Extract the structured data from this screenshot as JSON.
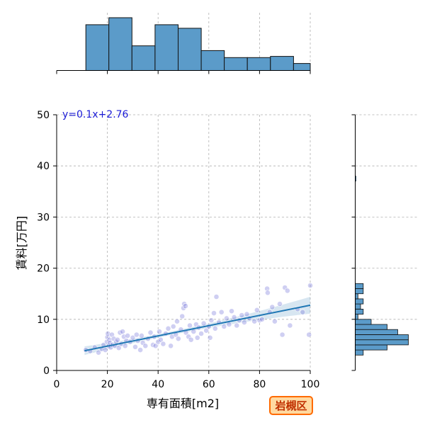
{
  "chart_data": {
    "type": "scatter",
    "xlabel": "専有面積[m2]",
    "ylabel": "賃料[万円]",
    "xlim": [
      0,
      100
    ],
    "ylim": [
      0,
      50
    ],
    "x_ticks": [
      0,
      20,
      40,
      60,
      80,
      100
    ],
    "y_ticks": [
      0,
      10,
      20,
      30,
      40,
      50
    ],
    "grid": true,
    "annotation": "y=0.1x+2.76",
    "badge": "岩槻区",
    "regression": {
      "slope": 0.1,
      "intercept": 2.76,
      "x_range": [
        11,
        100
      ]
    },
    "top_histogram": {
      "bin_edges": [
        11.5,
        20.6,
        29.7,
        38.8,
        47.9,
        57.0,
        66.1,
        75.2,
        84.3,
        93.4,
        100
      ],
      "counts": [
        39,
        45,
        21,
        39,
        36,
        17,
        11,
        11,
        12,
        6
      ]
    },
    "right_histogram": {
      "bin_edges": [
        3.0,
        4.0,
        5.0,
        6.0,
        7.0,
        8.0,
        9.0,
        10.0,
        11.0,
        12.0,
        13.0,
        14.0,
        15.0,
        16.0,
        17.0,
        38.0
      ],
      "counts": [
        3,
        12,
        20,
        20,
        16,
        12,
        6,
        1,
        3,
        2,
        3,
        1,
        3,
        3,
        0
      ]
    },
    "points": [
      [
        11.5,
        4.0
      ],
      [
        13.2,
        3.8
      ],
      [
        15.0,
        4.5
      ],
      [
        16.5,
        3.5
      ],
      [
        17.8,
        4.2
      ],
      [
        18.5,
        5.0
      ],
      [
        19.2,
        4.0
      ],
      [
        19.8,
        5.6
      ],
      [
        20.0,
        6.5
      ],
      [
        20.2,
        7.2
      ],
      [
        20.5,
        4.8
      ],
      [
        20.8,
        6.0
      ],
      [
        21.0,
        5.4
      ],
      [
        21.3,
        4.5
      ],
      [
        21.8,
        7.0
      ],
      [
        22.0,
        5.0
      ],
      [
        22.5,
        6.2
      ],
      [
        23.0,
        4.8
      ],
      [
        23.5,
        5.6
      ],
      [
        24.0,
        6.0
      ],
      [
        24.5,
        4.4
      ],
      [
        25.0,
        7.4
      ],
      [
        25.5,
        5.2
      ],
      [
        26.0,
        7.6
      ],
      [
        26.5,
        6.6
      ],
      [
        27.0,
        4.8
      ],
      [
        27.5,
        5.8
      ],
      [
        28.0,
        6.8
      ],
      [
        29.0,
        5.6
      ],
      [
        30.0,
        6.4
      ],
      [
        31.0,
        4.6
      ],
      [
        31.5,
        7.0
      ],
      [
        32.0,
        5.8
      ],
      [
        33.0,
        4.0
      ],
      [
        33.5,
        6.8
      ],
      [
        34.0,
        5.4
      ],
      [
        35.0,
        4.8
      ],
      [
        36.0,
        6.2
      ],
      [
        37.0,
        7.4
      ],
      [
        38.0,
        5.0
      ],
      [
        38.5,
        6.6
      ],
      [
        39.0,
        4.8
      ],
      [
        40.0,
        5.6
      ],
      [
        40.5,
        7.6
      ],
      [
        41.0,
        6.0
      ],
      [
        42.0,
        5.2
      ],
      [
        43.0,
        7.2
      ],
      [
        44.0,
        8.2
      ],
      [
        45.0,
        4.8
      ],
      [
        45.5,
        6.6
      ],
      [
        46.0,
        8.6
      ],
      [
        47.0,
        7.0
      ],
      [
        47.5,
        9.6
      ],
      [
        48.0,
        6.2
      ],
      [
        49.0,
        8.0
      ],
      [
        49.5,
        10.6
      ],
      [
        50.0,
        12.2
      ],
      [
        50.3,
        13.0
      ],
      [
        50.8,
        12.6
      ],
      [
        51.0,
        7.4
      ],
      [
        52.0,
        6.6
      ],
      [
        52.5,
        8.8
      ],
      [
        53.0,
        6.0
      ],
      [
        54.0,
        7.6
      ],
      [
        55.0,
        9.0
      ],
      [
        55.5,
        6.4
      ],
      [
        56.0,
        8.4
      ],
      [
        57.0,
        7.2
      ],
      [
        58.0,
        9.2
      ],
      [
        59.0,
        7.8
      ],
      [
        60.0,
        8.6
      ],
      [
        60.5,
        6.4
      ],
      [
        61.0,
        9.8
      ],
      [
        62.0,
        11.2
      ],
      [
        62.5,
        8.2
      ],
      [
        63.0,
        14.4
      ],
      [
        64.0,
        9.4
      ],
      [
        65.0,
        11.4
      ],
      [
        66.0,
        8.6
      ],
      [
        67.0,
        10.2
      ],
      [
        68.0,
        9.0
      ],
      [
        69.0,
        11.6
      ],
      [
        70.0,
        10.4
      ],
      [
        71.0,
        8.8
      ],
      [
        72.0,
        9.8
      ],
      [
        73.0,
        10.8
      ],
      [
        74.0,
        9.4
      ],
      [
        75.0,
        11.0
      ],
      [
        76.0,
        10.2
      ],
      [
        78.0,
        9.6
      ],
      [
        79.0,
        11.8
      ],
      [
        80.0,
        9.8
      ],
      [
        81.0,
        10.0
      ],
      [
        83.0,
        16.0
      ],
      [
        83.2,
        15.2
      ],
      [
        84.0,
        11.4
      ],
      [
        85.0,
        12.4
      ],
      [
        86.0,
        9.6
      ],
      [
        88.0,
        13.0
      ],
      [
        89.0,
        7.0
      ],
      [
        90.0,
        16.2
      ],
      [
        91.0,
        15.6
      ],
      [
        92.0,
        8.8
      ],
      [
        95.0,
        12.0
      ],
      [
        97.0,
        11.4
      ],
      [
        99.5,
        7.0
      ],
      [
        100.0,
        16.6
      ]
    ]
  }
}
